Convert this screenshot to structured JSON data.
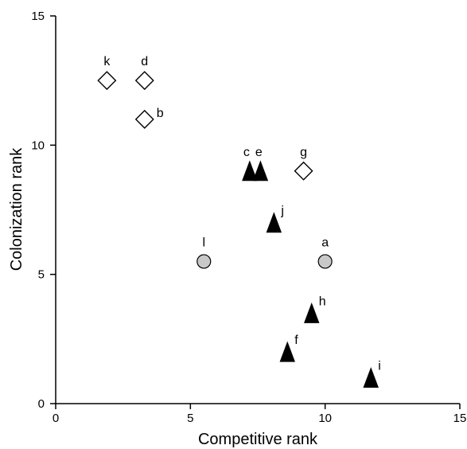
{
  "chart_data": {
    "type": "scatter",
    "title": "",
    "xlabel": "Competitive rank",
    "ylabel": "Colonization rank",
    "xlim": [
      0,
      15
    ],
    "ylim": [
      0,
      15
    ],
    "xticks": [
      "0",
      "5",
      "10",
      "15"
    ],
    "yticks": [
      "0",
      "5",
      "10",
      "15"
    ],
    "grid": false,
    "legend": "none",
    "marker_styles": {
      "diamond": {
        "shape": "diamond",
        "fill": "#ffffff",
        "stroke": "#000000"
      },
      "triangle": {
        "shape": "triangle",
        "fill": "#000000",
        "stroke": "#000000"
      },
      "circle": {
        "shape": "circle",
        "fill": "#c8c8c8",
        "stroke": "#000000"
      }
    },
    "points": [
      {
        "label": "k",
        "x": 1.9,
        "y": 12.5,
        "marker": "diamond"
      },
      {
        "label": "d",
        "x": 3.3,
        "y": 12.5,
        "marker": "diamond"
      },
      {
        "label": "b",
        "x": 3.3,
        "y": 11.0,
        "marker": "diamond"
      },
      {
        "label": "g",
        "x": 9.2,
        "y": 9.0,
        "marker": "diamond"
      },
      {
        "label": "c",
        "x": 7.2,
        "y": 9.0,
        "marker": "triangle"
      },
      {
        "label": "e",
        "x": 7.6,
        "y": 9.0,
        "marker": "triangle"
      },
      {
        "label": "j",
        "x": 8.1,
        "y": 7.0,
        "marker": "triangle"
      },
      {
        "label": "h",
        "x": 9.5,
        "y": 3.5,
        "marker": "triangle"
      },
      {
        "label": "f",
        "x": 8.6,
        "y": 2.0,
        "marker": "triangle"
      },
      {
        "label": "i",
        "x": 11.7,
        "y": 1.0,
        "marker": "triangle"
      },
      {
        "label": "l",
        "x": 5.5,
        "y": 5.5,
        "marker": "circle"
      },
      {
        "label": "a",
        "x": 10.0,
        "y": 5.5,
        "marker": "circle"
      }
    ]
  }
}
